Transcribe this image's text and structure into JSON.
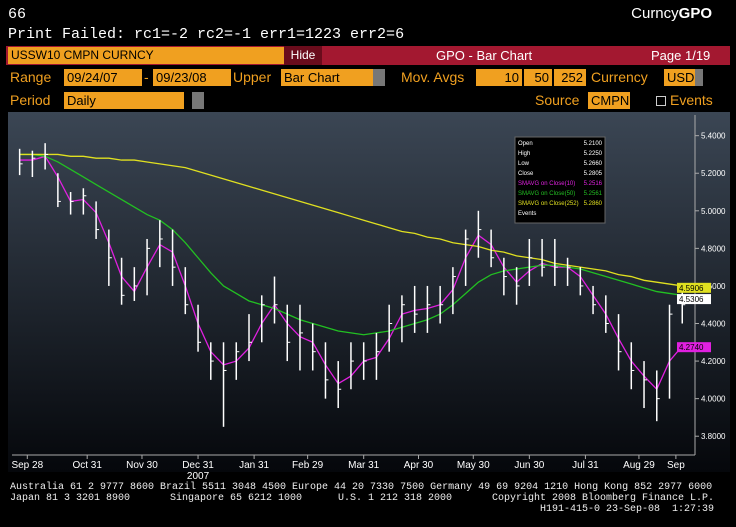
{
  "header": {
    "page_code": "66",
    "app": "Curncy",
    "function": "GPO",
    "message": "Print Failed: rc1=-2 rc2=-1 err1=1223 err2=6",
    "security": "USSW10 CMPN CURNCY",
    "hide": "Hide",
    "screen": "GPO - Bar Chart",
    "page": "Page 1/19"
  },
  "toolbar": {
    "range_label": "Range",
    "start": "09/24/07",
    "dash": "-",
    "end": "09/23/08",
    "upper_label": "Upper",
    "upper": "Bar Chart",
    "mov_label": "Mov. Avgs",
    "mov": [
      10,
      50,
      252
    ],
    "currency_label": "Currency",
    "currency": "USD",
    "period_label": "Period",
    "period": "Daily",
    "source_label": "Source",
    "source": "CMPN",
    "events": "Events"
  },
  "info_panel": {
    "rows": [
      [
        "Open",
        "5.2100"
      ],
      [
        "High",
        "5.2250"
      ],
      [
        "Low",
        "5.2660"
      ],
      [
        "Close",
        "5.2805"
      ],
      [
        "SMAVG on Close(10)",
        "5.2516"
      ],
      [
        "SMAVG on Close(50)",
        "5.2561"
      ],
      [
        "SMAVG on Close(252)",
        "5.2860"
      ],
      [
        "Events",
        ""
      ]
    ]
  },
  "footer": {
    "line1": "Australia 61 2 9777 8600 Brazil 5511 3048 4500 Europe 44 20 7330 7500 Germany 49 69 9204 1210 Hong Kong 852 2977 6000",
    "line2a": "Japan 81 3 3201 8900",
    "line2b": "Singapore 65 6212 1000",
    "line2c": "U.S. 1 212 318 2000",
    "line2d": "Copyright 2008 Bloomberg Finance L.P.",
    "line3": "H191-415-0 23-Sep-08  1:27:39"
  },
  "chart_data": {
    "type": "ohlc",
    "bar_color": "#ffffff",
    "categories": [
      null,
      null,
      null,
      null,
      null,
      null,
      null,
      null,
      null,
      null,
      null,
      null,
      null,
      null,
      null,
      null,
      null,
      null,
      null,
      null,
      null,
      null,
      null,
      null,
      null,
      null,
      null,
      null,
      null,
      null,
      null,
      null,
      null,
      null,
      null,
      null,
      null,
      null,
      null,
      null,
      null,
      null,
      null,
      null,
      null,
      null,
      null,
      null,
      null,
      null,
      null,
      null,
      null
    ],
    "high": [
      5.33,
      5.32,
      5.36,
      5.2,
      5.1,
      5.12,
      5.05,
      4.9,
      4.75,
      4.7,
      4.85,
      4.95,
      4.9,
      4.7,
      4.5,
      4.3,
      4.3,
      4.3,
      4.45,
      4.55,
      4.65,
      4.5,
      4.5,
      4.4,
      4.3,
      4.2,
      4.3,
      4.3,
      4.35,
      4.5,
      4.55,
      4.6,
      4.6,
      4.6,
      4.7,
      4.9,
      5.0,
      4.9,
      4.75,
      4.7,
      4.85,
      4.85,
      4.85,
      4.75,
      4.7,
      4.6,
      4.55,
      4.45,
      4.3,
      4.2,
      4.15,
      4.5,
      4.6
    ],
    "low": [
      5.19,
      5.18,
      5.22,
      5.02,
      4.98,
      4.98,
      4.85,
      4.6,
      4.5,
      4.52,
      4.55,
      4.7,
      4.6,
      4.45,
      4.25,
      4.1,
      3.85,
      4.1,
      4.2,
      4.3,
      4.4,
      4.2,
      4.15,
      4.15,
      4.0,
      3.95,
      4.05,
      4.1,
      4.1,
      4.25,
      4.3,
      4.35,
      4.35,
      4.4,
      4.45,
      4.6,
      4.75,
      4.7,
      4.55,
      4.5,
      4.6,
      4.65,
      4.6,
      4.6,
      4.55,
      4.45,
      4.35,
      4.15,
      4.05,
      3.95,
      3.88,
      4.0,
      4.4
    ],
    "close": [
      5.25,
      5.28,
      5.3,
      5.05,
      5.05,
      5.08,
      4.9,
      4.75,
      4.55,
      4.6,
      4.8,
      4.85,
      4.7,
      4.5,
      4.3,
      4.2,
      4.15,
      4.25,
      4.3,
      4.5,
      4.5,
      4.3,
      4.35,
      4.25,
      4.1,
      4.05,
      4.2,
      4.2,
      4.25,
      4.4,
      4.5,
      4.45,
      4.5,
      4.5,
      4.65,
      4.85,
      4.9,
      4.75,
      4.65,
      4.6,
      4.75,
      4.7,
      4.7,
      4.7,
      4.6,
      4.5,
      4.4,
      4.25,
      4.15,
      4.1,
      4.0,
      4.45,
      4.5
    ],
    "moving_averages": [
      {
        "color": "#e020e0",
        "values": [
          5.27,
          5.27,
          5.29,
          5.18,
          5.05,
          5.06,
          4.99,
          4.83,
          4.65,
          4.57,
          4.7,
          4.82,
          4.78,
          4.6,
          4.4,
          4.25,
          4.18,
          4.2,
          4.27,
          4.4,
          4.5,
          4.4,
          4.33,
          4.3,
          4.18,
          4.08,
          4.12,
          4.2,
          4.22,
          4.32,
          4.45,
          4.47,
          4.48,
          4.5,
          4.58,
          4.75,
          4.87,
          4.82,
          4.7,
          4.62,
          4.68,
          4.72,
          4.7,
          4.7,
          4.65,
          4.55,
          4.45,
          4.32,
          4.2,
          4.12,
          4.05,
          4.2,
          4.28
        ]
      },
      {
        "color": "#22c022",
        "values": [
          5.3,
          5.3,
          5.29,
          5.26,
          5.22,
          5.18,
          5.14,
          5.1,
          5.06,
          5.02,
          4.98,
          4.95,
          4.9,
          4.83,
          4.75,
          4.67,
          4.6,
          4.56,
          4.52,
          4.5,
          4.48,
          4.45,
          4.42,
          4.4,
          4.38,
          4.36,
          4.35,
          4.34,
          4.35,
          4.36,
          4.38,
          4.4,
          4.42,
          4.45,
          4.5,
          4.56,
          4.62,
          4.66,
          4.68,
          4.69,
          4.7,
          4.71,
          4.71,
          4.7,
          4.69,
          4.67,
          4.65,
          4.63,
          4.61,
          4.59,
          4.57,
          4.56,
          4.55
        ]
      },
      {
        "color": "#e0e020",
        "values": [
          5.3,
          5.3,
          5.3,
          5.3,
          5.29,
          5.29,
          5.28,
          5.28,
          5.27,
          5.27,
          5.26,
          5.25,
          5.24,
          5.23,
          5.21,
          5.19,
          5.17,
          5.15,
          5.13,
          5.11,
          5.09,
          5.07,
          5.05,
          5.03,
          5.01,
          4.99,
          4.97,
          4.95,
          4.93,
          4.91,
          4.89,
          4.88,
          4.86,
          4.85,
          4.83,
          4.82,
          4.81,
          4.79,
          4.78,
          4.76,
          4.75,
          4.74,
          4.72,
          4.71,
          4.7,
          4.69,
          4.68,
          4.66,
          4.65,
          4.63,
          4.62,
          4.61,
          4.6
        ]
      }
    ],
    "last_labels": [
      {
        "value": 4.59,
        "label": "4.5906",
        "color": "#e0e020"
      },
      {
        "value": 4.53,
        "label": "4.5306",
        "color": "#ffffff"
      },
      {
        "value": 4.274,
        "label": "4.2740",
        "color": "#e020e0"
      }
    ],
    "xlim": [
      -0.6,
      53
    ],
    "xticks": [
      {
        "value": 0.6,
        "label": "Sep 28"
      },
      {
        "value": 5.3,
        "label": "Oct 31"
      },
      {
        "value": 9.6,
        "label": "Nov 30"
      },
      {
        "value": 14,
        "label": "Dec 31"
      },
      {
        "value": 18.4,
        "label": "Jan 31"
      },
      {
        "value": 22.6,
        "label": "Feb 29"
      },
      {
        "value": 27,
        "label": "Mar 31"
      },
      {
        "value": 31.3,
        "label": "Apr 30"
      },
      {
        "value": 35.6,
        "label": "May 30"
      },
      {
        "value": 40,
        "label": "Jun 30"
      },
      {
        "value": 44.4,
        "label": "Jul 31"
      },
      {
        "value": 48.6,
        "label": "Aug 29"
      },
      {
        "value": 51.5,
        "label": "Sep"
      }
    ],
    "year_label": {
      "value": 14,
      "label": "2007"
    },
    "ylim": [
      3.7,
      5.51
    ],
    "yticks": [
      {
        "value": 3.8,
        "label": "3.8000"
      },
      {
        "value": 4.0,
        "label": "4.0000"
      },
      {
        "value": 4.2,
        "label": "4.2000"
      },
      {
        "value": 4.4,
        "label": "4.4000"
      },
      {
        "value": 4.6,
        "label": "4.6000"
      },
      {
        "value": 4.8,
        "label": "4.8000"
      },
      {
        "value": 5.0,
        "label": "5.0000"
      },
      {
        "value": 5.2,
        "label": "5.2000"
      },
      {
        "value": 5.4,
        "label": "5.4000"
      }
    ]
  }
}
